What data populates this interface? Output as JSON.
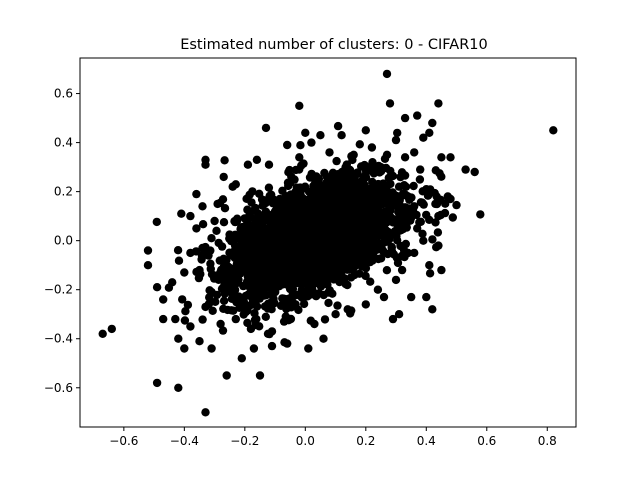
{
  "chart_data": {
    "type": "scatter",
    "title": "Estimated number of clusters: 0 - CIFAR10",
    "xlabel": "",
    "ylabel": "",
    "xlim": [
      -0.745,
      0.895
    ],
    "ylim": [
      -0.76,
      0.745
    ],
    "xticks": [
      -0.6,
      -0.4,
      -0.2,
      0.0,
      0.2,
      0.4,
      0.6,
      0.8
    ],
    "xtick_labels": [
      "−0.6",
      "−0.4",
      "−0.2",
      "0.0",
      "0.2",
      "0.4",
      "0.6",
      "0.8"
    ],
    "yticks": [
      -0.6,
      -0.4,
      -0.2,
      0.0,
      0.2,
      0.4,
      0.6
    ],
    "ytick_labels": [
      "−0.6",
      "−0.4",
      "−0.2",
      "0.0",
      "0.2",
      "0.4",
      "0.6"
    ],
    "grid": false,
    "legend": "none",
    "marker_color": "#000000",
    "points": [
      [
        0.82,
        0.45
      ],
      [
        0.27,
        0.68
      ],
      [
        0.44,
        0.56
      ],
      [
        0.28,
        0.56
      ],
      [
        0.56,
        0.28
      ],
      [
        0.53,
        0.29
      ],
      [
        0.48,
        0.17
      ],
      [
        0.42,
        0.48
      ],
      [
        0.37,
        0.51
      ],
      [
        0.33,
        0.5
      ],
      [
        0.41,
        0.44
      ],
      [
        0.39,
        0.42
      ],
      [
        -0.02,
        0.55
      ],
      [
        -0.13,
        0.46
      ],
      [
        -0.33,
        0.33
      ],
      [
        -0.33,
        0.31
      ],
      [
        -0.67,
        -0.38
      ],
      [
        -0.64,
        -0.36
      ],
      [
        -0.49,
        -0.58
      ],
      [
        -0.42,
        -0.6
      ],
      [
        -0.33,
        -0.7
      ],
      [
        -0.52,
        -0.04
      ],
      [
        -0.52,
        -0.1
      ],
      [
        -0.49,
        -0.19
      ],
      [
        -0.47,
        -0.24
      ],
      [
        -0.47,
        -0.32
      ],
      [
        -0.43,
        -0.32
      ],
      [
        -0.41,
        0.11
      ],
      [
        -0.38,
        0.1
      ],
      [
        -0.36,
        0.19
      ],
      [
        -0.42,
        -0.4
      ],
      [
        -0.4,
        -0.44
      ],
      [
        -0.38,
        -0.35
      ],
      [
        -0.35,
        -0.41
      ],
      [
        -0.31,
        -0.44
      ],
      [
        -0.26,
        -0.55
      ],
      [
        -0.21,
        -0.48
      ],
      [
        -0.15,
        -0.55
      ],
      [
        -0.17,
        -0.44
      ],
      [
        -0.11,
        -0.43
      ],
      [
        -0.06,
        -0.42
      ],
      [
        0.01,
        -0.44
      ],
      [
        0.06,
        -0.4
      ],
      [
        0.45,
        -0.12
      ],
      [
        0.44,
        -0.02
      ],
      [
        0.44,
        0.1
      ],
      [
        0.43,
        0.15
      ],
      [
        0.45,
        0.34
      ],
      [
        0.48,
        0.34
      ],
      [
        0.4,
        -0.23
      ],
      [
        0.42,
        -0.28
      ],
      [
        0.35,
        -0.23
      ],
      [
        0.31,
        -0.3
      ],
      [
        0.29,
        -0.32
      ],
      [
        0.36,
        0.36
      ],
      [
        0.38,
        0.29
      ],
      [
        0.05,
        0.43
      ],
      [
        0.12,
        0.43
      ],
      [
        0.2,
        0.45
      ],
      [
        0.3,
        0.41
      ],
      [
        0.33,
        0.34
      ],
      [
        -0.06,
        0.39
      ],
      [
        0.0,
        0.44
      ],
      [
        0.02,
        0.4
      ],
      [
        -0.19,
        0.31
      ],
      [
        -0.29,
        0.15
      ],
      [
        -0.23,
        0.23
      ],
      [
        -0.31,
        -0.21
      ],
      [
        -0.23,
        -0.32
      ],
      [
        -0.11,
        -0.37
      ],
      [
        0.1,
        -0.3
      ],
      [
        0.2,
        -0.26
      ],
      [
        0.26,
        -0.23
      ],
      [
        0.32,
        -0.12
      ],
      [
        0.36,
        -0.05
      ],
      [
        0.37,
        0.05
      ],
      [
        0.36,
        0.14
      ],
      [
        0.31,
        0.22
      ],
      [
        0.25,
        0.3
      ],
      [
        0.16,
        0.35
      ],
      [
        0.08,
        0.36
      ],
      [
        -0.02,
        0.34
      ],
      [
        -0.12,
        0.31
      ],
      [
        -0.24,
        0.22
      ],
      [
        -0.3,
        0.08
      ],
      [
        -0.34,
        -0.03
      ],
      [
        -0.35,
        -0.12
      ],
      [
        -0.33,
        -0.27
      ],
      [
        -0.28,
        -0.34
      ],
      [
        -0.18,
        -0.36
      ],
      [
        -0.07,
        -0.33
      ],
      [
        0.03,
        -0.34
      ],
      [
        0.14,
        -0.28
      ],
      [
        0.24,
        -0.2
      ],
      [
        0.3,
        -0.16
      ],
      [
        -0.44,
        -0.17
      ],
      [
        -0.4,
        -0.13
      ],
      [
        -0.38,
        -0.05
      ],
      [
        -0.36,
        0.05
      ],
      [
        -0.34,
        0.14
      ],
      [
        -0.27,
        0.26
      ],
      [
        -0.16,
        0.33
      ],
      [
        0.4,
        0.21
      ],
      [
        0.41,
        -0.1
      ],
      [
        0.39,
        0.0
      ],
      [
        0.34,
        0.18
      ],
      [
        0.27,
        0.35
      ],
      [
        0.22,
        0.38
      ]
    ],
    "dense_cores": [
      {
        "cx": 0.0,
        "cy": 0.0,
        "sx": 0.12,
        "sy": 0.11,
        "rho": 0.5,
        "n": 1800
      },
      {
        "cx": 0.05,
        "cy": 0.03,
        "sx": 0.16,
        "sy": 0.13,
        "rho": 0.45,
        "n": 1200
      }
    ]
  }
}
